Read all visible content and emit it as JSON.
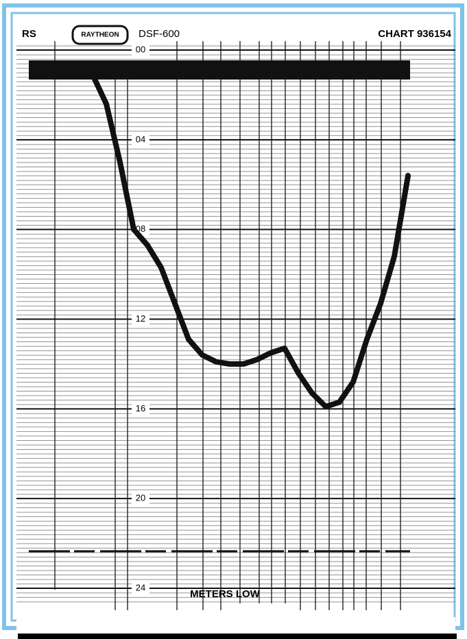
{
  "chart_data": {
    "type": "line",
    "header_left": "RS",
    "brand": "RAYTHEON",
    "model": "DSF-600",
    "chart_id": "CHART 936154",
    "ylabel": "METERS LOW",
    "series": [
      {
        "color": "#111111",
        "values": [
          1.1,
          2.4,
          5.0,
          8.0,
          8.7,
          9.7,
          11.3,
          12.9,
          13.6,
          13.9,
          14.0,
          14.0,
          13.8,
          13.5,
          13.3,
          14.4,
          15.3,
          15.9,
          15.7,
          14.8,
          12.9,
          11.3,
          9.2,
          5.6
        ]
      }
    ],
    "ylim": [
      0,
      24
    ],
    "yticks": [
      {
        "value": 0,
        "label": "00"
      },
      {
        "value": 4,
        "label": "04"
      },
      {
        "value": 8,
        "label": "08"
      },
      12,
      16,
      20,
      24
    ],
    "invert_y": true,
    "grid": true
  }
}
